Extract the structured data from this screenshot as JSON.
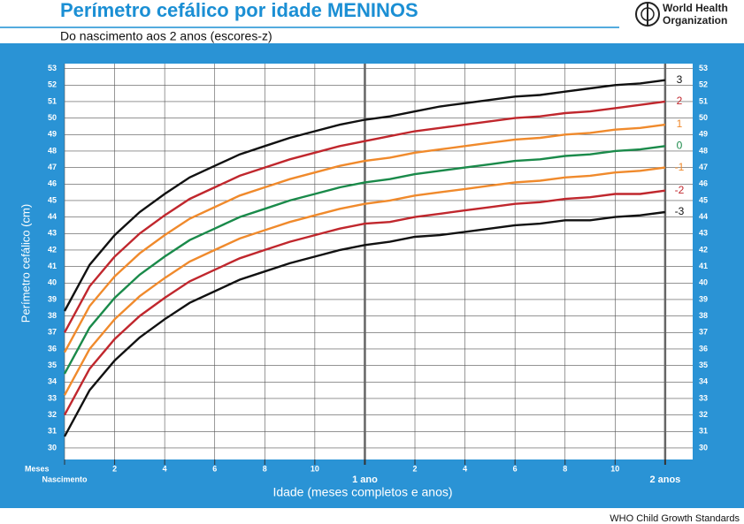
{
  "header": {
    "organization_line1": "World Health",
    "organization_line2": "Organization"
  },
  "footer": "WHO Child Growth Standards",
  "chart_data": {
    "type": "line",
    "title": "Perímetro cefálico por idade MENINOS",
    "subtitle": "Do nascimento aos 2 anos (escores-z)",
    "x_label": "Idade (meses completos e anos)",
    "x_unit_label": "Meses",
    "y_label": "Perímetro cefálico (cm)",
    "x": [
      0,
      1,
      2,
      3,
      4,
      5,
      6,
      7,
      8,
      9,
      10,
      11,
      12,
      13,
      14,
      15,
      16,
      17,
      18,
      19,
      20,
      21,
      22,
      23,
      24
    ],
    "xlim": [
      0,
      25.1
    ],
    "ylim": [
      29.3,
      53.3
    ],
    "xticks": [
      {
        "value": 0,
        "label": "Nascimento"
      },
      2,
      4,
      6,
      8,
      10,
      {
        "value": 12,
        "label": "1 ano"
      },
      {
        "value": 14,
        "label": "2"
      },
      {
        "value": 16,
        "label": "4"
      },
      {
        "value": 18,
        "label": "6"
      },
      {
        "value": 20,
        "label": "8"
      },
      {
        "value": 22,
        "label": "10"
      },
      {
        "value": 24,
        "label": "2 anos"
      }
    ],
    "yticks": [
      30,
      31,
      32,
      33,
      34,
      35,
      36,
      37,
      38,
      39,
      40,
      41,
      42,
      43,
      44,
      45,
      46,
      47,
      48,
      49,
      50,
      51,
      52,
      53
    ],
    "grid": true,
    "series": [
      {
        "name": "3",
        "color": "#111111",
        "values": [
          38.3,
          41.1,
          42.9,
          44.3,
          45.4,
          46.4,
          47.1,
          47.8,
          48.3,
          48.8,
          49.2,
          49.6,
          49.9,
          50.1,
          50.4,
          50.7,
          50.9,
          51.1,
          51.3,
          51.4,
          51.6,
          51.8,
          52.0,
          52.1,
          52.3
        ]
      },
      {
        "name": "2",
        "color": "#c0272d",
        "values": [
          37.0,
          39.8,
          41.6,
          43.0,
          44.1,
          45.1,
          45.8,
          46.5,
          47.0,
          47.5,
          47.9,
          48.3,
          48.6,
          48.9,
          49.2,
          49.4,
          49.6,
          49.8,
          50.0,
          50.1,
          50.3,
          50.4,
          50.6,
          50.8,
          51.0
        ]
      },
      {
        "name": "1",
        "color": "#f08a2c",
        "values": [
          35.8,
          38.6,
          40.4,
          41.8,
          42.9,
          43.9,
          44.6,
          45.3,
          45.8,
          46.3,
          46.7,
          47.1,
          47.4,
          47.6,
          47.9,
          48.1,
          48.3,
          48.5,
          48.7,
          48.8,
          49.0,
          49.1,
          49.3,
          49.4,
          49.6
        ]
      },
      {
        "name": "0",
        "color": "#1a8a4a",
        "values": [
          34.5,
          37.3,
          39.1,
          40.5,
          41.6,
          42.6,
          43.3,
          44.0,
          44.5,
          45.0,
          45.4,
          45.8,
          46.1,
          46.3,
          46.6,
          46.8,
          47.0,
          47.2,
          47.4,
          47.5,
          47.7,
          47.8,
          48.0,
          48.1,
          48.3
        ]
      },
      {
        "name": "-1",
        "color": "#f08a2c",
        "values": [
          33.2,
          36.0,
          37.8,
          39.2,
          40.3,
          41.3,
          42.0,
          42.7,
          43.2,
          43.7,
          44.1,
          44.5,
          44.8,
          45.0,
          45.3,
          45.5,
          45.7,
          45.9,
          46.1,
          46.2,
          46.4,
          46.5,
          46.7,
          46.8,
          47.0
        ]
      },
      {
        "name": "-2",
        "color": "#c0272d",
        "values": [
          32.0,
          34.8,
          36.6,
          38.0,
          39.1,
          40.1,
          40.8,
          41.5,
          42.0,
          42.5,
          42.9,
          43.3,
          43.6,
          43.7,
          44.0,
          44.2,
          44.4,
          44.6,
          44.8,
          44.9,
          45.1,
          45.2,
          45.4,
          45.4,
          45.6
        ]
      },
      {
        "name": "-3",
        "color": "#111111",
        "values": [
          30.7,
          33.5,
          35.3,
          36.7,
          37.8,
          38.8,
          39.5,
          40.2,
          40.7,
          41.2,
          41.6,
          42.0,
          42.3,
          42.5,
          42.8,
          42.9,
          43.1,
          43.3,
          43.5,
          43.6,
          43.8,
          43.8,
          44.0,
          44.1,
          44.3
        ]
      }
    ]
  }
}
